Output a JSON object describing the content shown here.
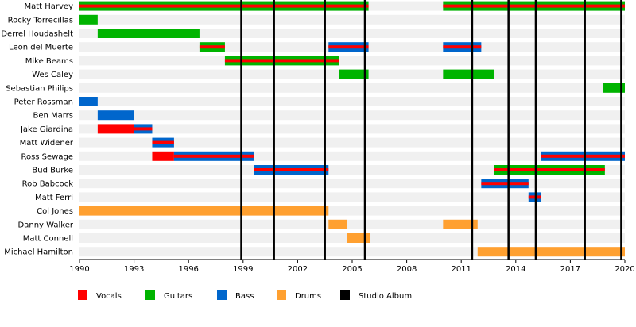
{
  "chart_data": {
    "type": "timeline",
    "title": "",
    "xlim": [
      1990,
      2020
    ],
    "x_ticks": [
      "1990",
      "1993",
      "1996",
      "1999",
      "2002",
      "2005",
      "2008",
      "2011",
      "2014",
      "2017",
      "2020"
    ],
    "colors": {
      "Vocals": "#ff0000",
      "Guitars": "#00b400",
      "Bass": "#0066cc",
      "Drums": "#ffa030",
      "Studio Album": "#000000",
      "row_stripe": "#f0f0f0"
    },
    "legend": [
      "Vocals",
      "Guitars",
      "Bass",
      "Drums",
      "Studio Album"
    ],
    "legend_placement": "bottom",
    "studio_albums": [
      1998.9,
      2000.7,
      2003.5,
      2005.7,
      2011.6,
      2013.6,
      2015.1,
      2017.8,
      2019.8
    ],
    "members": [
      {
        "name": "Matt Harvey",
        "stints": [
          {
            "start": 1990.0,
            "end": 2005.9,
            "roles": [
              "Guitars",
              "Vocals"
            ]
          },
          {
            "start": 2010.0,
            "end": 2020.0,
            "roles": [
              "Guitars",
              "Vocals"
            ]
          }
        ]
      },
      {
        "name": "Rocky Torrecillas",
        "stints": [
          {
            "start": 1990.0,
            "end": 1991.0,
            "roles": [
              "Guitars"
            ]
          }
        ]
      },
      {
        "name": "Derrel Houdashelt",
        "stints": [
          {
            "start": 1991.0,
            "end": 1996.6,
            "roles": [
              "Guitars"
            ]
          }
        ]
      },
      {
        "name": "Leon del Muerte",
        "stints": [
          {
            "start": 1996.6,
            "end": 1998.0,
            "roles": [
              "Guitars",
              "Vocals"
            ]
          },
          {
            "start": 2003.7,
            "end": 2005.9,
            "roles": [
              "Bass",
              "Vocals"
            ]
          },
          {
            "start": 2010.0,
            "end": 2012.1,
            "roles": [
              "Bass",
              "Vocals"
            ]
          }
        ]
      },
      {
        "name": "Mike Beams",
        "stints": [
          {
            "start": 1998.0,
            "end": 2004.3,
            "roles": [
              "Guitars",
              "Vocals"
            ]
          }
        ]
      },
      {
        "name": "Wes Caley",
        "stints": [
          {
            "start": 2004.3,
            "end": 2005.9,
            "roles": [
              "Guitars"
            ]
          },
          {
            "start": 2010.0,
            "end": 2012.8,
            "roles": [
              "Guitars"
            ]
          }
        ]
      },
      {
        "name": "Sebastian Philips",
        "stints": [
          {
            "start": 2018.8,
            "end": 2020.0,
            "roles": [
              "Guitars"
            ]
          }
        ]
      },
      {
        "name": "Peter Rossman",
        "stints": [
          {
            "start": 1990.0,
            "end": 1991.0,
            "roles": [
              "Bass"
            ]
          }
        ]
      },
      {
        "name": "Ben Marrs",
        "stints": [
          {
            "start": 1991.0,
            "end": 1993.0,
            "roles": [
              "Bass"
            ]
          }
        ]
      },
      {
        "name": "Jake Giardina",
        "stints": [
          {
            "start": 1991.0,
            "end": 1993.0,
            "roles": [
              "Vocals"
            ]
          },
          {
            "start": 1993.0,
            "end": 1994.0,
            "roles": [
              "Bass",
              "Vocals"
            ]
          }
        ]
      },
      {
        "name": "Matt Widener",
        "stints": [
          {
            "start": 1994.0,
            "end": 1995.2,
            "roles": [
              "Bass",
              "Vocals"
            ]
          }
        ]
      },
      {
        "name": "Ross Sewage",
        "stints": [
          {
            "start": 1994.0,
            "end": 1995.2,
            "roles": [
              "Vocals"
            ]
          },
          {
            "start": 1995.2,
            "end": 1999.6,
            "roles": [
              "Bass",
              "Vocals"
            ]
          },
          {
            "start": 2015.4,
            "end": 2020.0,
            "roles": [
              "Bass",
              "Vocals"
            ]
          }
        ]
      },
      {
        "name": "Bud Burke",
        "stints": [
          {
            "start": 1999.6,
            "end": 2003.7,
            "roles": [
              "Bass",
              "Vocals"
            ]
          },
          {
            "start": 2012.8,
            "end": 2018.9,
            "roles": [
              "Guitars",
              "Vocals"
            ]
          }
        ]
      },
      {
        "name": "Rob Babcock",
        "stints": [
          {
            "start": 2012.1,
            "end": 2014.7,
            "roles": [
              "Bass",
              "Vocals"
            ]
          }
        ]
      },
      {
        "name": "Matt Ferri",
        "stints": [
          {
            "start": 2014.7,
            "end": 2015.4,
            "roles": [
              "Bass",
              "Vocals"
            ]
          }
        ]
      },
      {
        "name": "Col Jones",
        "stints": [
          {
            "start": 1990.0,
            "end": 2003.7,
            "roles": [
              "Drums"
            ]
          }
        ]
      },
      {
        "name": "Danny Walker",
        "stints": [
          {
            "start": 2003.7,
            "end": 2004.7,
            "roles": [
              "Drums"
            ]
          },
          {
            "start": 2010.0,
            "end": 2011.9,
            "roles": [
              "Drums"
            ]
          }
        ]
      },
      {
        "name": "Matt Connell",
        "stints": [
          {
            "start": 2004.7,
            "end": 2006.0,
            "roles": [
              "Drums"
            ]
          }
        ]
      },
      {
        "name": "Michael Hamilton",
        "stints": [
          {
            "start": 2011.9,
            "end": 2020.0,
            "roles": [
              "Drums"
            ]
          }
        ]
      }
    ]
  }
}
